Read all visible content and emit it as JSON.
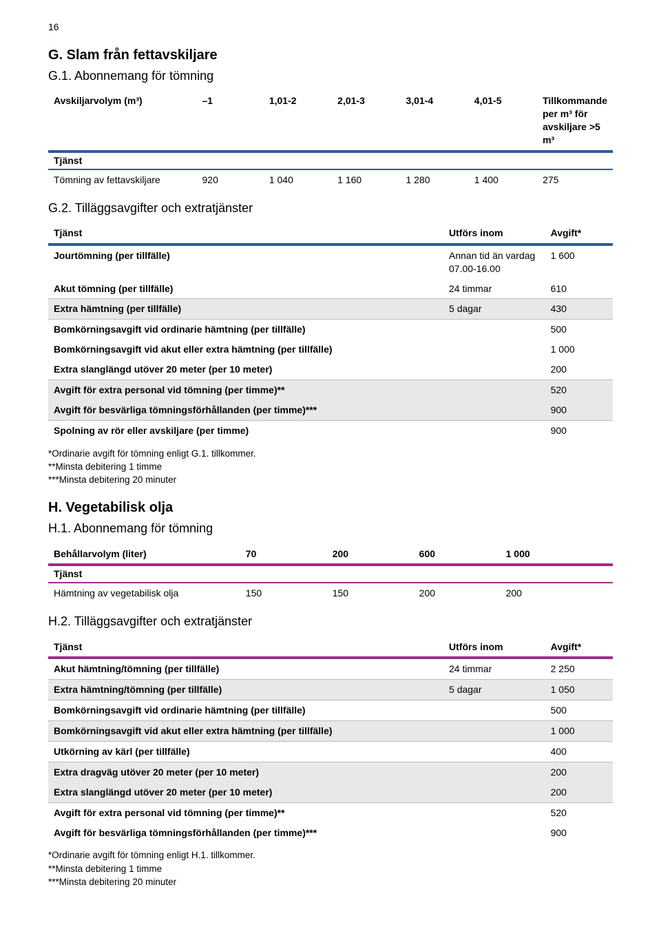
{
  "page_number": "16",
  "section_g": {
    "title": "G. Slam från fettavskiljare",
    "sub1": {
      "title": "G.1. Abonnemang för tömning",
      "table": {
        "head_label": "Avskiljarvolym (m³)",
        "cols": [
          "–1",
          "1,01-2",
          "2,01-3",
          "3,01-4",
          "4,01-5",
          "Tillkommande per m³ för avskiljare >5 m³"
        ],
        "tjänst_label": "Tjänst",
        "row_label": "Tömning av fettavskiljare",
        "row_vals": [
          "920",
          "1 040",
          "1 160",
          "1 280",
          "1 400",
          "275"
        ]
      }
    },
    "sub2": {
      "title": "G.2. Tilläggsavgifter och extratjänster",
      "head": {
        "c1": "Tjänst",
        "c2": "Utförs inom",
        "c3": "Avgift*"
      },
      "rows": [
        {
          "label": "Jourtömning (per tillfälle)",
          "c2": "Annan tid än vardag 07.00-16.00",
          "c3": "1 600",
          "shade": false
        },
        {
          "label": "Akut tömning (per tillfälle)",
          "c2": "24 timmar",
          "c3": "610",
          "shade": false,
          "sep": false
        },
        {
          "label": "Extra hämtning (per tillfälle)",
          "c2": "5 dagar",
          "c3": "430",
          "shade": true,
          "sep": true
        },
        {
          "label": "Bomkörningsavgift vid ordinarie hämtning (per tillfälle)",
          "c2": "",
          "c3": "500",
          "shade": false,
          "sep": true
        },
        {
          "label": "Bomkörningsavgift vid akut eller extra hämtning (per tillfälle)",
          "c2": "",
          "c3": "1 000",
          "shade": false
        },
        {
          "label": "Extra slanglängd utöver 20 meter (per 10 meter)",
          "c2": "",
          "c3": "200",
          "shade": false
        },
        {
          "label": "Avgift för extra personal vid tömning (per timme)**",
          "c2": "",
          "c3": "520",
          "shade": true,
          "sep": true
        },
        {
          "label": "Avgift för besvärliga tömningsförhållanden (per timme)***",
          "c2": "",
          "c3": "900",
          "shade": true
        },
        {
          "label": "Spolning av rör eller avskiljare (per timme)",
          "c2": "",
          "c3": "900",
          "shade": false,
          "sep": true
        }
      ]
    },
    "footnotes": [
      "*Ordinarie avgift för tömning enligt G.1. tillkommer.",
      "**Minsta debitering 1 timme",
      "***Minsta debitering 20 minuter"
    ]
  },
  "section_h": {
    "title": "H. Vegetabilisk olja",
    "sub1": {
      "title": "H.1. Abonnemang för tömning",
      "table": {
        "head_label": "Behållarvolym (liter)",
        "cols": [
          "70",
          "200",
          "600",
          "1 000"
        ],
        "tjänst_label": "Tjänst",
        "row_label": "Hämtning av vegetabilisk olja",
        "row_vals": [
          "150",
          "150",
          "200",
          "200"
        ]
      }
    },
    "sub2": {
      "title": "H.2. Tilläggsavgifter och extratjänster",
      "head": {
        "c1": "Tjänst",
        "c2": "Utförs inom",
        "c3": "Avgift*"
      },
      "rows": [
        {
          "label": "Akut hämtning/tömning (per tillfälle)",
          "c2": "24 timmar",
          "c3": "2 250",
          "shade": false
        },
        {
          "label": "Extra hämtning/tömning (per tillfälle)",
          "c2": "5 dagar",
          "c3": "1 050",
          "shade": true,
          "sep": true
        },
        {
          "label": "Bomkörningsavgift vid ordinarie hämtning (per tillfälle)",
          "c2": "",
          "c3": "500",
          "shade": false,
          "sep": true
        },
        {
          "label": "Bomkörningsavgift vid akut eller extra hämtning (per tillfälle)",
          "c2": "",
          "c3": "1 000",
          "shade": true,
          "sep": true
        },
        {
          "label": "Utkörning av kärl (per tillfälle)",
          "c2": "",
          "c3": "400",
          "shade": false,
          "sep": true
        },
        {
          "label": "Extra dragväg utöver 20 meter (per 10 meter)",
          "c2": "",
          "c3": "200",
          "shade": true,
          "sep": true
        },
        {
          "label": "Extra slanglängd utöver 20 meter (per 10 meter)",
          "c2": "",
          "c3": "200",
          "shade": true
        },
        {
          "label": "Avgift för extra personal vid tömning (per timme)**",
          "c2": "",
          "c3": "520",
          "shade": false,
          "sep": true
        },
        {
          "label": "Avgift för besvärliga tömningsförhållanden (per timme)***",
          "c2": "",
          "c3": "900",
          "shade": false
        }
      ]
    },
    "footnotes": [
      "*Ordinarie avgift för tömning enligt H.1. tillkommer.",
      "**Minsta debitering 1 timme",
      "***Minsta debitering 20 minuter"
    ]
  }
}
